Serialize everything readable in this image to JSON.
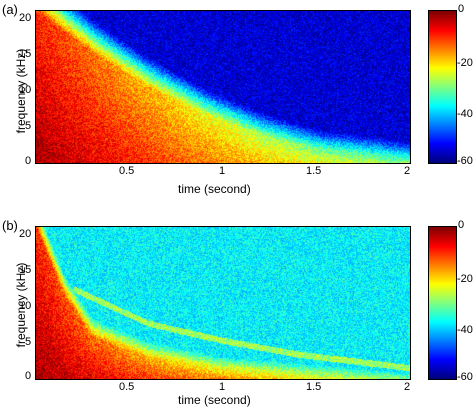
{
  "chart_data": [
    {
      "type": "heatmap",
      "panel_label": "(a)",
      "xlabel": "time (second)",
      "ylabel": "frequency (kHz)",
      "x_ticks": [
        "0.5",
        "1",
        "1.5",
        "2"
      ],
      "y_ticks": [
        "20",
        "15",
        "10",
        "5",
        "0"
      ],
      "x_range": [
        0,
        2
      ],
      "y_range": [
        0,
        22
      ],
      "colorbar": {
        "ticks": [
          "0",
          "-20",
          "-40",
          "-60"
        ],
        "range": [
          -60,
          0
        ]
      },
      "decay_edge": {
        "t": [
          0.0,
          0.3,
          0.6,
          0.9,
          1.2,
          1.5,
          2.0
        ],
        "freq_khz": [
          22,
          16,
          11,
          7,
          4,
          2,
          1
        ]
      },
      "background_level_db": -55
    },
    {
      "type": "heatmap",
      "panel_label": "(b)",
      "xlabel": "time (second)",
      "ylabel": "frequency (kHz)",
      "x_ticks": [
        "0.5",
        "1",
        "1.5",
        "2"
      ],
      "y_ticks": [
        "20",
        "15",
        "10",
        "5",
        "0"
      ],
      "x_range": [
        0,
        2
      ],
      "y_range": [
        0,
        22
      ],
      "colorbar": {
        "ticks": [
          "0",
          "-20",
          "-40",
          "-60"
        ],
        "range": [
          -60,
          0
        ]
      },
      "decay_edge": {
        "t": [
          0.0,
          0.15,
          0.3,
          0.6,
          1.0,
          2.0
        ],
        "freq_khz": [
          22,
          12,
          6,
          3,
          1.5,
          0.8
        ]
      },
      "background_level_db": -38,
      "chirp_curve": {
        "t": [
          0.2,
          0.6,
          1.0,
          1.4,
          2.0
        ],
        "freq_khz": [
          13,
          8,
          5.5,
          3.5,
          1.5
        ]
      }
    }
  ]
}
